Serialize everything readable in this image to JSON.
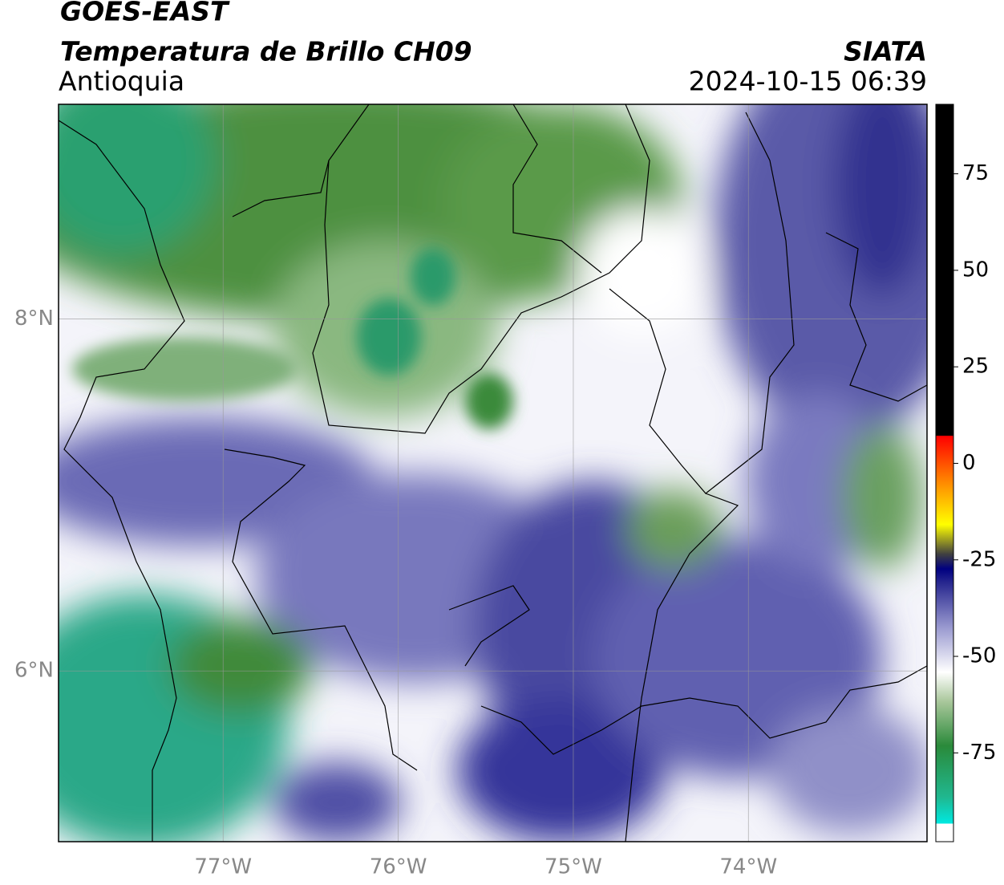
{
  "header": {
    "title": "GOES-EAST",
    "subtitle": "Temperatura de Brillo CH09",
    "region": "Antioquia",
    "source": "SIATA",
    "datetime": "2024-10-15 06:39"
  },
  "map": {
    "lonlim": [
      -77.94,
      -72.98
    ],
    "latlim": [
      5.03,
      9.22
    ],
    "lonticks": [
      {
        "value": -77,
        "label": "77°W"
      },
      {
        "value": -76,
        "label": "76°W"
      },
      {
        "value": -75,
        "label": "75°W"
      },
      {
        "value": -74,
        "label": "74°W"
      }
    ],
    "latticks": [
      {
        "value": 8,
        "label": "8°N"
      },
      {
        "value": 6,
        "label": "6°N"
      }
    ]
  },
  "colorbar": {
    "lim": [
      -98,
      93
    ],
    "ticks": [
      75,
      50,
      25,
      0,
      -25,
      -50,
      -75
    ]
  }
}
